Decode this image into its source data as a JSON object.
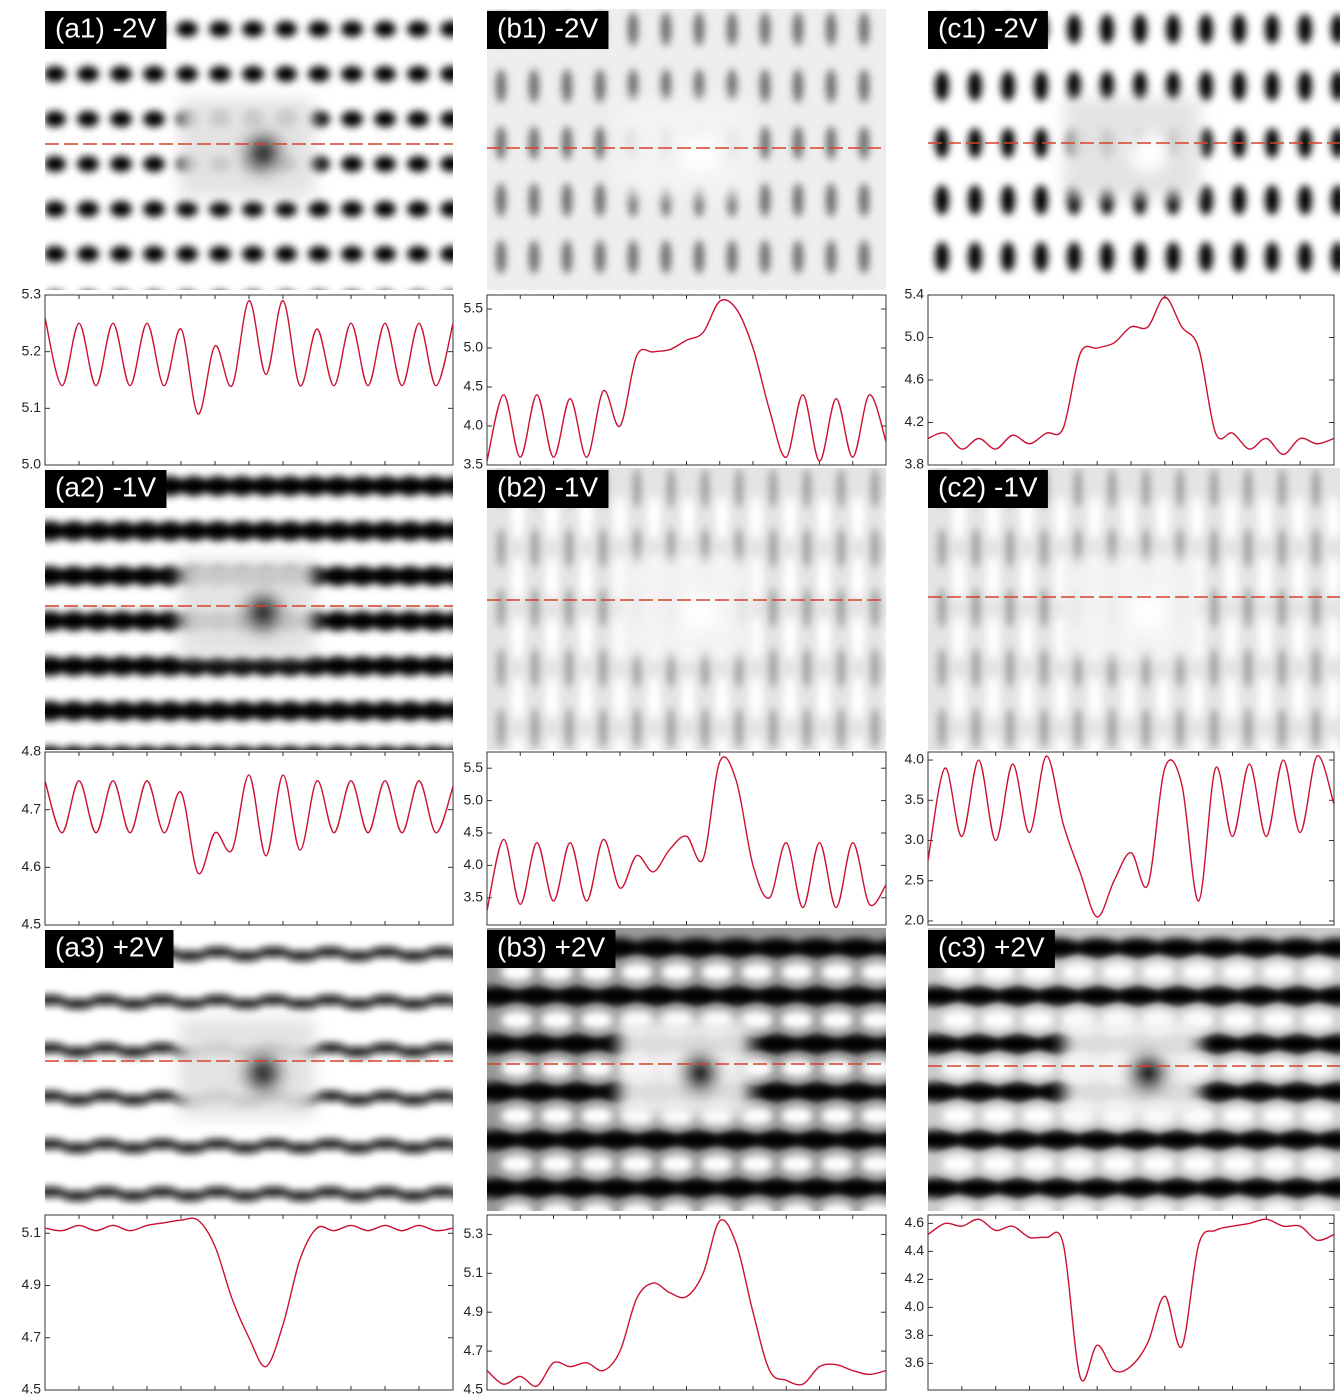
{
  "image_labels": [
    "(a1) -2V",
    "(b1) -2V",
    "(c1) -2V",
    "(a2) -1V",
    "(b2) -1V",
    "(c2) -1V",
    "(a3) +2V",
    "(b3) +2V",
    "(c3) +2V"
  ],
  "chart_data": [
    {
      "type": "line",
      "color": "#cc1133",
      "ylim": [
        5.0,
        5.3
      ],
      "yticks": [
        {
          "value": 5,
          "label": "5.0"
        },
        5.1,
        5.2,
        5.3
      ],
      "values": [
        5.26,
        5.14,
        5.25,
        5.14,
        5.25,
        5.14,
        5.25,
        5.14,
        5.24,
        5.09,
        5.21,
        5.14,
        5.29,
        5.16,
        5.29,
        5.14,
        5.24,
        5.14,
        5.25,
        5.14,
        5.25,
        5.14,
        5.25,
        5.14,
        5.25
      ]
    },
    {
      "type": "line",
      "color": "#cc1133",
      "ylim": [
        3.5,
        5.68
      ],
      "yticks": [
        3.5,
        {
          "value": 4,
          "label": "4.0"
        },
        4.5,
        {
          "value": 5,
          "label": "5.0"
        },
        5.5
      ],
      "values": [
        3.55,
        4.4,
        3.6,
        4.4,
        3.6,
        4.35,
        3.6,
        4.45,
        4.0,
        4.9,
        4.95,
        4.98,
        5.1,
        5.2,
        5.6,
        5.5,
        5.0,
        4.2,
        3.6,
        4.4,
        3.55,
        4.35,
        3.6,
        4.4,
        3.8
      ]
    },
    {
      "type": "line",
      "color": "#cc1133",
      "ylim": [
        3.8,
        5.4
      ],
      "yticks": [
        3.8,
        4.2,
        4.6,
        {
          "value": 5,
          "label": "5.0"
        },
        5.4
      ],
      "values": [
        4.05,
        4.1,
        3.95,
        4.05,
        3.95,
        4.08,
        4.0,
        4.1,
        4.15,
        4.85,
        4.9,
        4.95,
        5.1,
        5.1,
        5.38,
        5.1,
        4.9,
        4.1,
        4.1,
        3.95,
        4.05,
        3.9,
        4.05,
        4.0,
        4.05
      ]
    },
    {
      "type": "line",
      "color": "#cc1133",
      "ylim": [
        4.5,
        4.8
      ],
      "yticks": [
        4.5,
        4.6,
        4.7,
        4.8
      ],
      "values": [
        4.75,
        4.66,
        4.75,
        4.66,
        4.75,
        4.66,
        4.75,
        4.66,
        4.73,
        4.59,
        4.66,
        4.63,
        4.76,
        4.62,
        4.76,
        4.63,
        4.75,
        4.66,
        4.75,
        4.66,
        4.75,
        4.66,
        4.75,
        4.66,
        4.74
      ]
    },
    {
      "type": "line",
      "color": "#cc1133",
      "ylim": [
        3.08,
        5.75
      ],
      "yticks": [
        3.5,
        {
          "value": 4,
          "label": "4.0"
        },
        4.5,
        {
          "value": 5,
          "label": "5.0"
        },
        5.5
      ],
      "values": [
        3.3,
        4.4,
        3.4,
        4.35,
        3.45,
        4.35,
        3.45,
        4.4,
        3.65,
        4.15,
        3.9,
        4.25,
        4.45,
        4.1,
        5.6,
        5.3,
        4.0,
        3.5,
        4.35,
        3.35,
        4.35,
        3.35,
        4.35,
        3.4,
        3.7
      ]
    },
    {
      "type": "line",
      "color": "#cc1133",
      "ylim": [
        1.95,
        4.1
      ],
      "yticks": [
        {
          "value": 2,
          "label": "2.0"
        },
        2.5,
        {
          "value": 3,
          "label": "3.0"
        },
        3.5,
        {
          "value": 4,
          "label": "4.0"
        }
      ],
      "values": [
        2.75,
        3.9,
        3.05,
        4.0,
        3.0,
        3.95,
        3.1,
        4.05,
        3.2,
        2.6,
        2.05,
        2.5,
        2.85,
        2.45,
        3.9,
        3.7,
        2.25,
        3.9,
        3.05,
        3.95,
        3.05,
        4.0,
        3.1,
        4.05,
        3.45
      ]
    },
    {
      "type": "line",
      "color": "#cc1133",
      "ylim": [
        4.5,
        5.17
      ],
      "yticks": [
        4.5,
        4.7,
        4.9,
        5.1
      ],
      "values": [
        5.12,
        5.11,
        5.13,
        5.11,
        5.13,
        5.11,
        5.13,
        5.14,
        5.15,
        5.15,
        5.05,
        4.85,
        4.7,
        4.59,
        4.75,
        5.0,
        5.12,
        5.11,
        5.13,
        5.11,
        5.13,
        5.11,
        5.13,
        5.11,
        5.12
      ]
    },
    {
      "type": "line",
      "color": "#cc1133",
      "ylim": [
        4.5,
        5.4
      ],
      "yticks": [
        4.5,
        4.7,
        4.9,
        5.1,
        5.3
      ],
      "values": [
        4.6,
        4.53,
        4.57,
        4.52,
        4.64,
        4.62,
        4.64,
        4.6,
        4.7,
        4.97,
        5.05,
        5.0,
        4.98,
        5.1,
        5.37,
        5.25,
        4.9,
        4.6,
        4.55,
        4.53,
        4.62,
        4.63,
        4.6,
        4.58,
        4.6
      ]
    },
    {
      "type": "line",
      "color": "#cc1133",
      "ylim": [
        3.41,
        4.66
      ],
      "yticks": [
        3.6,
        3.8,
        {
          "value": 4,
          "label": "4.0"
        },
        4.2,
        4.4,
        4.6
      ],
      "values": [
        4.52,
        4.6,
        4.58,
        4.63,
        4.55,
        4.58,
        4.5,
        4.5,
        4.45,
        3.5,
        3.73,
        3.55,
        3.58,
        3.75,
        4.08,
        3.72,
        4.45,
        4.55,
        4.58,
        4.6,
        4.63,
        4.58,
        4.58,
        4.48,
        4.52
      ]
    }
  ]
}
